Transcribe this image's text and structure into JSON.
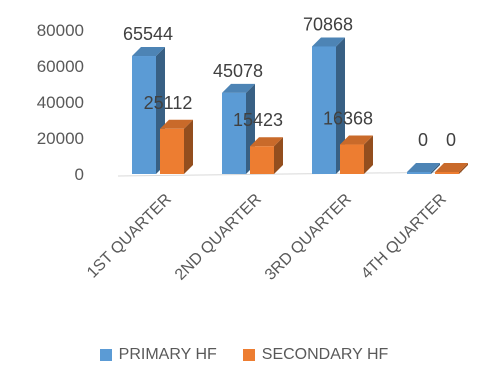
{
  "chart_data": {
    "type": "bar",
    "categories": [
      "1ST QUARTER",
      "2ND QUARTER",
      "3RD QUARTER",
      "4TH QUARTER"
    ],
    "series": [
      {
        "name": "PRIMARY HF",
        "values": [
          65544,
          45078,
          70868,
          0
        ],
        "color": "#5b9bd5"
      },
      {
        "name": "SECONDARY HF",
        "values": [
          25112,
          15423,
          16368,
          0
        ],
        "color": "#ed7d31"
      }
    ],
    "data_labels": [
      [
        "65544",
        "45078",
        "70868",
        "0"
      ],
      [
        "25112",
        "15423",
        "16368",
        "0"
      ]
    ],
    "ylim": [
      0,
      80000
    ],
    "yticks": [
      "0",
      "20000",
      "40000",
      "60000",
      "80000"
    ],
    "style": "3d-clustered-bar",
    "grid": false,
    "legend": "bottom"
  }
}
